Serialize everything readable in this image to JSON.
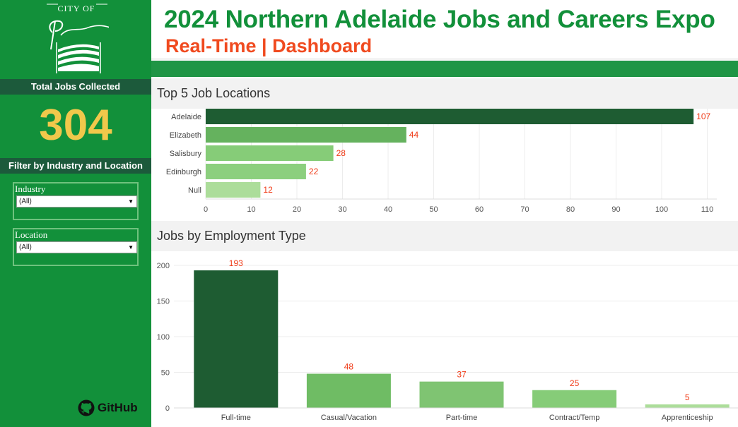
{
  "sidebar": {
    "logo": {
      "top_text": "CITY OF",
      "script_text": "Playford"
    },
    "total_jobs_label": "Total Jobs Collected",
    "total_jobs_value": "304",
    "filter_heading": "Filter by Industry and Location",
    "filters": [
      {
        "label": "Industry",
        "value": "(All)"
      },
      {
        "label": "Location",
        "value": "(All)"
      }
    ],
    "github_label": "GitHub"
  },
  "header": {
    "title": "2024 Northern Adelaide Jobs and Careers Expo",
    "subtitle": "Real-Time | Dashboard"
  },
  "colors": {
    "brand_green": "#12903a",
    "title_green": "#12903a",
    "subtitle_orange": "#f04a1f",
    "kpi_gold": "#f1c84b",
    "dark_band": "#1c5a3b",
    "label_red": "#f03a16"
  },
  "chart_data": [
    {
      "type": "bar",
      "orientation": "horizontal",
      "title": "Top 5 Job Locations",
      "categories": [
        "Adelaide",
        "Elizabeth",
        "Salisbury",
        "Edinburgh",
        "Null"
      ],
      "values": [
        107,
        44,
        28,
        22,
        12
      ],
      "colors": [
        "#1e5c32",
        "#65b25e",
        "#86cc78",
        "#8ccf7e",
        "#acdd9a"
      ],
      "xlim": [
        0,
        115
      ],
      "ticks": [
        0,
        10,
        20,
        30,
        40,
        50,
        60,
        70,
        80,
        90,
        100,
        110
      ],
      "xlabel": "",
      "ylabel": ""
    },
    {
      "type": "bar",
      "orientation": "vertical",
      "title": "Jobs by Employment Type",
      "categories": [
        "Full-time",
        "Casual/Vacation",
        "Part-time",
        "Contract/Temp",
        "Apprenticeship"
      ],
      "values": [
        193,
        48,
        37,
        25,
        5
      ],
      "colors": [
        "#1e5c32",
        "#6fbc64",
        "#7fc472",
        "#86cc78",
        "#acdd9a"
      ],
      "ylim": [
        0,
        200
      ],
      "ticks": [
        0,
        50,
        100,
        150,
        200
      ],
      "xlabel": "",
      "ylabel": ""
    }
  ]
}
